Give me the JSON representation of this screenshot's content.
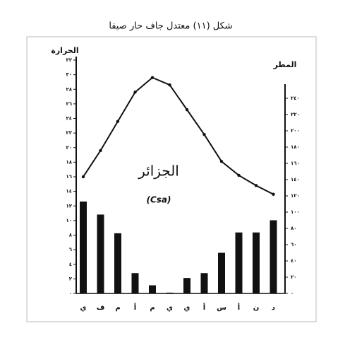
{
  "chart_data": {
    "type": "combo",
    "title": "شكل (١١) معتدل جاف حار صيفا",
    "y_label": "الحرارة",
    "y2_label": "المطر",
    "annotations": [
      "الجزائر",
      "(Csa)"
    ],
    "categories": [
      "ي",
      "ف",
      "م",
      "أ",
      "م",
      "ي",
      "ي",
      "أ",
      "س",
      "أ",
      "ن",
      "د"
    ],
    "series": [
      {
        "name": "الحرارة",
        "type": "line",
        "color": "#111111",
        "values": [
          16.0,
          19.6,
          23.6,
          27.6,
          29.6,
          28.6,
          25.2,
          21.8,
          18.1,
          16.2,
          14.8,
          13.6
        ]
      },
      {
        "name": "المطر",
        "type": "bar",
        "axis": "y2",
        "color": "#111111",
        "values": [
          113,
          97,
          74,
          25,
          10,
          1,
          19,
          25,
          50,
          75,
          75,
          90
        ]
      }
    ],
    "ylim": [
      0,
      32
    ],
    "yticks": [
      {
        "value": 0,
        "label": "٠"
      },
      {
        "value": 2,
        "label": "٢"
      },
      {
        "value": 4,
        "label": "٤"
      },
      {
        "value": 6,
        "label": "٦"
      },
      {
        "value": 8,
        "label": "٨"
      },
      {
        "value": 10,
        "label": "١٠"
      },
      {
        "value": 12,
        "label": "١٢"
      },
      {
        "value": 14,
        "label": "١٤"
      },
      {
        "value": 16,
        "label": "١٦"
      },
      {
        "value": 18,
        "label": "١٨"
      },
      {
        "value": 20,
        "label": "٢٠"
      },
      {
        "value": 22,
        "label": "٢٢"
      },
      {
        "value": 24,
        "label": "٢٤"
      },
      {
        "value": 26,
        "label": "٢٦"
      },
      {
        "value": 28,
        "label": "٢٨"
      },
      {
        "value": 30,
        "label": "٣٠"
      },
      {
        "value": 32,
        "label": "٣٢"
      }
    ],
    "y2lim": [
      0,
      240
    ],
    "y2ticks": [
      {
        "value": 0,
        "label": "٠"
      },
      {
        "value": 20,
        "label": "٢٠"
      },
      {
        "value": 40,
        "label": "٤٠"
      },
      {
        "value": 60,
        "label": "٦٠"
      },
      {
        "value": 80,
        "label": "٨٠"
      },
      {
        "value": 100,
        "label": "١٠٠"
      },
      {
        "value": 120,
        "label": "١٢٠"
      },
      {
        "value": 140,
        "label": "١٤٠"
      },
      {
        "value": 160,
        "label": "١٦٠"
      },
      {
        "value": 180,
        "label": "١٨٠"
      },
      {
        "value": 200,
        "label": "٢٠٠"
      },
      {
        "value": 220,
        "label": "٢٢٠"
      },
      {
        "value": 240,
        "label": "٢٤٠"
      }
    ]
  }
}
